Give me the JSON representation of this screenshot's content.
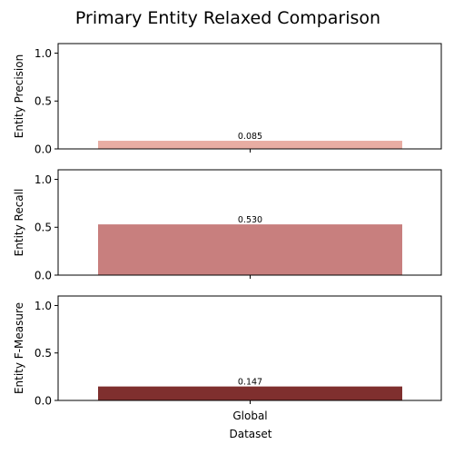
{
  "title": "Primary Entity Relaxed Comparison",
  "xlabel": "Dataset",
  "chart_data": [
    {
      "type": "bar",
      "title": "Primary Entity Relaxed Comparison",
      "categories": [
        "Global"
      ],
      "values": [
        0.085
      ],
      "value_labels": [
        "0.085"
      ],
      "xlabel": "",
      "ylabel": "Entity Precision",
      "ylim": [
        0,
        1.1
      ],
      "yticks": [
        "0.0",
        "0.5",
        "1.0"
      ],
      "color": "#e8ada3",
      "grid": false
    },
    {
      "type": "bar",
      "categories": [
        "Global"
      ],
      "values": [
        0.53
      ],
      "value_labels": [
        "0.530"
      ],
      "xlabel": "",
      "ylabel": "Entity Recall",
      "ylim": [
        0,
        1.1
      ],
      "yticks": [
        "0.0",
        "0.5",
        "1.0"
      ],
      "color": "#c87f7e",
      "grid": false
    },
    {
      "type": "bar",
      "categories": [
        "Global"
      ],
      "values": [
        0.147
      ],
      "value_labels": [
        "0.147"
      ],
      "xlabel": "Dataset",
      "ylabel": "Entity F-Measure",
      "ylim": [
        0,
        1.1
      ],
      "yticks": [
        "0.0",
        "0.5",
        "1.0"
      ],
      "color": "#7f2f2e",
      "grid": false
    }
  ]
}
